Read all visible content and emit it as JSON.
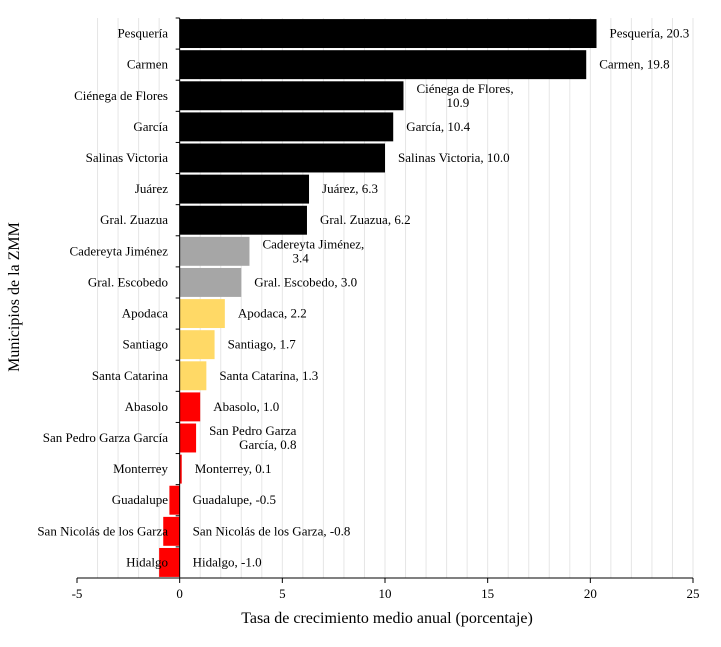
{
  "chart_data": {
    "type": "bar",
    "orientation": "horizontal",
    "xlabel": "Tasa de crecimiento medio anual (porcentaje)",
    "ylabel": "Municipios de la ZMM",
    "xlim": [
      -5,
      25
    ],
    "xticks": [
      -5,
      0,
      5,
      10,
      15,
      20,
      25
    ],
    "xtick_labels": [
      "-5",
      "0",
      "5",
      "10",
      "15",
      "20",
      "25"
    ],
    "grid": "vertical minor",
    "categories": [
      "Pesquería",
      "Carmen",
      "Ciénega de Flores",
      "García",
      "Salinas Victoria",
      "Juárez",
      "Gral. Zuazua",
      "Cadereyta Jiménez",
      "Gral. Escobedo",
      "Apodaca",
      "Santiago",
      "Santa Catarina",
      "Abasolo",
      "San Pedro Garza García",
      "Monterrey",
      "Guadalupe",
      "San Nicolás de los Garza",
      "Hidalgo"
    ],
    "values": [
      20.3,
      19.8,
      10.9,
      10.4,
      10.0,
      6.3,
      6.2,
      3.4,
      3.0,
      2.2,
      1.7,
      1.3,
      1.0,
      0.8,
      0.1,
      -0.5,
      -0.8,
      -1.0
    ],
    "data_labels": [
      [
        "Pesquería, 20.3"
      ],
      [
        "Carmen, 19.8"
      ],
      [
        "Ciénega de Flores,",
        "10.9"
      ],
      [
        "García, 10.4"
      ],
      [
        "Salinas Victoria, 10.0"
      ],
      [
        "Juárez, 6.3"
      ],
      [
        "Gral. Zuazua, 6.2"
      ],
      [
        "Cadereyta Jiménez,",
        "3.4"
      ],
      [
        "Gral. Escobedo, 3.0"
      ],
      [
        "Apodaca, 2.2"
      ],
      [
        "Santiago, 1.7"
      ],
      [
        "Santa Catarina, 1.3"
      ],
      [
        "Abasolo, 1.0"
      ],
      [
        "San Pedro Garza",
        "García, 0.8"
      ],
      [
        "Monterrey, 0.1"
      ],
      [
        "Guadalupe, -0.5"
      ],
      [
        "San Nicolás de los Garza, -0.8"
      ],
      [
        "Hidalgo, -1.0"
      ]
    ],
    "bar_groups": [
      "black",
      "black",
      "black",
      "black",
      "black",
      "black",
      "black",
      "gray",
      "gray",
      "yellow",
      "yellow",
      "yellow",
      "red",
      "red",
      "red",
      "red",
      "red",
      "red"
    ],
    "colors": {
      "black": "#000000",
      "gray": "#a6a6a6",
      "yellow": "#ffd966",
      "red": "#ff0000"
    }
  }
}
